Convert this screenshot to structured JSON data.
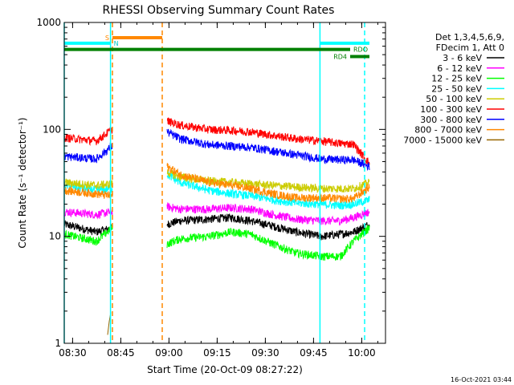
{
  "chart_data": {
    "type": "line",
    "title": "RHESSI Observing Summary Count Rates",
    "xlabel": "Start Time (20-Oct-09 08:27:22)",
    "ylabel": "Count Rate (s⁻¹ detector⁻¹)",
    "x_unit": "minutes after 08:27:22",
    "xlim": [
      0,
      100
    ],
    "x_ticks": [
      {
        "label": "08:30",
        "x": 2.6
      },
      {
        "label": "08:45",
        "x": 17.6
      },
      {
        "label": "09:00",
        "x": 32.6
      },
      {
        "label": "09:15",
        "x": 47.6
      },
      {
        "label": "09:30",
        "x": 62.6
      },
      {
        "label": "09:45",
        "x": 77.6
      },
      {
        "label": "10:00",
        "x": 92.6
      }
    ],
    "y_scale": "log",
    "ylim": [
      1,
      1000
    ],
    "y_ticks": [
      {
        "label": "1",
        "value": 1
      },
      {
        "label": "10",
        "value": 10
      },
      {
        "label": "100",
        "value": 100
      },
      {
        "label": "1000",
        "value": 1000
      }
    ],
    "legend": {
      "placement": "right",
      "header": [
        "Det 1,3,4,5,6,9,",
        "FDecim 1, Att 0"
      ]
    },
    "gaps": [
      [
        15,
        32
      ]
    ],
    "series": [
      {
        "name": "3 - 6 keV",
        "color": "#000000",
        "x": [
          0,
          10,
          14.9,
          32,
          36,
          45,
          52,
          58,
          65,
          72,
          80,
          86,
          90,
          95
        ],
        "y": [
          13,
          11,
          12,
          13,
          14,
          14.5,
          15,
          14,
          12.5,
          11,
          10,
          10.5,
          11,
          13
        ]
      },
      {
        "name": "6 - 12 keV",
        "color": "#ff00ff",
        "x": [
          0,
          10,
          14.9,
          32,
          36,
          45,
          52,
          58,
          65,
          72,
          80,
          86,
          90,
          95
        ],
        "y": [
          17,
          16,
          17,
          19,
          18,
          18,
          18.5,
          18,
          16,
          14.5,
          14,
          14,
          15,
          17
        ]
      },
      {
        "name": "12 - 25 keV",
        "color": "#00ff00",
        "x": [
          0,
          10,
          14.9,
          32,
          36,
          45,
          52,
          58,
          65,
          72,
          80,
          86,
          90,
          95
        ],
        "y": [
          10.5,
          9,
          12,
          8.5,
          9.5,
          10,
          11,
          10.5,
          8.5,
          7,
          6.5,
          6.5,
          9,
          12
        ]
      },
      {
        "name": "25 - 50 keV",
        "color": "#00ffff",
        "x": [
          0,
          10,
          14.9,
          32,
          36,
          45,
          52,
          58,
          65,
          72,
          80,
          86,
          90,
          95
        ],
        "y": [
          30,
          27,
          28,
          38,
          32,
          27,
          25,
          24,
          22,
          20.5,
          20,
          19.5,
          20,
          22
        ]
      },
      {
        "name": "50 - 100 keV",
        "color": "#cccc00",
        "x": [
          0,
          10,
          14.9,
          32,
          36,
          45,
          52,
          58,
          65,
          72,
          80,
          86,
          90,
          95
        ],
        "y": [
          32,
          30,
          31,
          40,
          36,
          33,
          32,
          31,
          30,
          29,
          28,
          28,
          28,
          32
        ]
      },
      {
        "name": "100 - 300 keV",
        "color": "#ff0000",
        "x": [
          0,
          10,
          14.9,
          32,
          36,
          45,
          52,
          58,
          65,
          72,
          80,
          86,
          90,
          95
        ],
        "y": [
          84,
          78,
          100,
          120,
          110,
          100,
          98,
          95,
          88,
          82,
          78,
          74,
          73,
          48
        ]
      },
      {
        "name": "300 - 800 keV",
        "color": "#0000ff",
        "x": [
          0,
          10,
          14.9,
          32,
          36,
          45,
          52,
          58,
          65,
          72,
          80,
          86,
          90,
          95
        ],
        "y": [
          56,
          53,
          70,
          95,
          82,
          72,
          70,
          68,
          63,
          58,
          53,
          52,
          52,
          45
        ]
      },
      {
        "name": "800 - 7000 keV",
        "color": "#ff8800",
        "x": [
          0,
          10,
          14.9,
          32,
          36,
          45,
          52,
          58,
          65,
          72,
          80,
          86,
          90,
          95
        ],
        "y": [
          27,
          25,
          24,
          45,
          38,
          32,
          30,
          28,
          25,
          23,
          23,
          22.5,
          22.5,
          29
        ]
      },
      {
        "name": "7000 - 15000 keV",
        "color": "#996600",
        "x": [
          13.5,
          14.0,
          14.5
        ],
        "y": [
          1.2,
          1.6,
          1.95
        ]
      }
    ],
    "annotations": {
      "vertical_lines": [
        {
          "x": 0,
          "color": "#00ffff",
          "style": "solid"
        },
        {
          "x": 14.4,
          "color": "#00ffff",
          "style": "solid"
        },
        {
          "x": 15.0,
          "color": "#ff8800",
          "style": "dashed"
        },
        {
          "x": 30.5,
          "color": "#ff8800",
          "style": "dashed"
        },
        {
          "x": 79.6,
          "color": "#00ffff",
          "style": "solid"
        },
        {
          "x": 93.5,
          "color": "#00ffff",
          "style": "dashed"
        }
      ],
      "bars": [
        {
          "label": "S",
          "color": "#ff8800",
          "x0": 15.0,
          "x1": 30.5,
          "y": 720,
          "label_side": "left"
        },
        {
          "label": "N",
          "color": "#00ffff",
          "x0": 0,
          "x1": 14.4,
          "y": 640,
          "label_side": "right"
        },
        {
          "label": "",
          "color": "#00ffff",
          "x0": 79.6,
          "x1": 95,
          "y": 640,
          "label_side": "none"
        },
        {
          "label": "RDO",
          "color": "#008000",
          "x0": 0,
          "x1": 89,
          "y": 560,
          "label_side": "right"
        },
        {
          "label": "RD4",
          "color": "#008000",
          "x0": 89,
          "x1": 95,
          "y": 480,
          "label_side": "left"
        }
      ]
    },
    "footer_timestamp": "16-Oct-2021 03:44"
  }
}
